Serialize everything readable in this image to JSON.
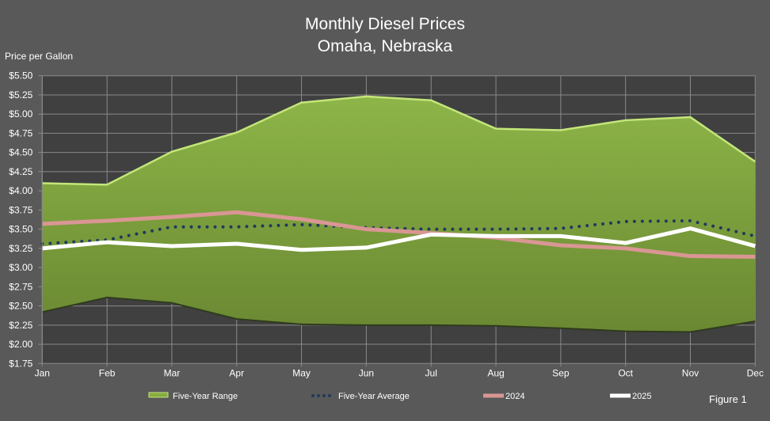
{
  "chart_data": {
    "type": "line",
    "title": "Monthly Diesel Prices",
    "subtitle": "Omaha, Nebraska",
    "ylabel": "Price per Gallon",
    "xlabel": "",
    "ylim": [
      1.75,
      5.5
    ],
    "ytick_step": 0.25,
    "ytick_labels": [
      "$1.75",
      "$2.00",
      "$2.25",
      "$2.50",
      "$2.75",
      "$3.00",
      "$3.25",
      "$3.50",
      "$3.75",
      "$4.00",
      "$4.25",
      "$4.50",
      "$4.75",
      "$5.00",
      "$5.25",
      "$5.50"
    ],
    "categories": [
      "Jan",
      "Feb",
      "Mar",
      "Apr",
      "May",
      "Jun",
      "Jul",
      "Aug",
      "Sep",
      "Oct",
      "Nov",
      "Dec"
    ],
    "grid": true,
    "legend_position": "bottom",
    "range": {
      "name": "Five-Year Range",
      "color": "#86AB3F",
      "high": [
        4.1,
        4.08,
        4.51,
        4.76,
        5.15,
        5.23,
        5.18,
        4.81,
        4.79,
        4.92,
        4.96,
        4.38
      ],
      "low": [
        2.42,
        2.61,
        2.54,
        2.33,
        2.26,
        2.25,
        2.25,
        2.24,
        2.21,
        2.17,
        2.16,
        2.3
      ]
    },
    "series": [
      {
        "name": "Five-Year Average",
        "color": "#1F3A5C",
        "style": "dotted",
        "values": [
          3.31,
          3.36,
          3.53,
          3.53,
          3.56,
          3.52,
          3.5,
          3.5,
          3.51,
          3.6,
          3.61,
          3.41
        ]
      },
      {
        "name": "2024",
        "color": "#D99694",
        "style": "solid",
        "values": [
          3.57,
          3.61,
          3.66,
          3.72,
          3.63,
          3.5,
          3.45,
          3.39,
          3.29,
          3.25,
          3.15,
          3.14
        ]
      },
      {
        "name": "2025",
        "color": "#FFFFFF",
        "style": "solid",
        "values": [
          3.25,
          3.33,
          3.28,
          3.31,
          3.23,
          3.26,
          3.43,
          3.41,
          3.41,
          3.32,
          3.51,
          3.28
        ]
      }
    ],
    "annotation": "Figure 1"
  }
}
